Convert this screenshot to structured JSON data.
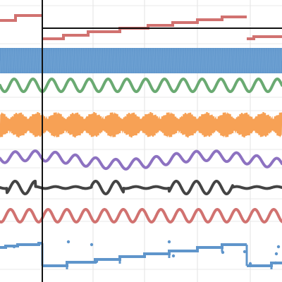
{
  "chart_data": {
    "type": "line",
    "title": "",
    "xlabel": "",
    "ylabel": "",
    "grid": true,
    "legend": "none",
    "x_range": [
      0,
      400
    ],
    "vertical_reference_line_x": 60,
    "series": [
      {
        "kind": "step",
        "color": "#d17270",
        "segments": [
          {
            "points": [
              [
                0,
                29
              ],
              [
                22,
                29
              ],
              [
                22,
                22
              ],
              [
                60,
                22
              ]
            ]
          },
          {
            "points": [
              [
                60,
                55
              ],
              [
                90,
                55
              ],
              [
                90,
                50
              ],
              [
                125,
                50
              ],
              [
                125,
                45
              ],
              [
                170,
                45
              ],
              [
                170,
                40
              ],
              [
                210,
                40
              ],
              [
                210,
                36
              ],
              [
                245,
                36
              ],
              [
                245,
                32
              ],
              [
                280,
                32
              ],
              [
                280,
                28
              ],
              [
                315,
                28
              ],
              [
                315,
                24
              ],
              [
                350,
                24
              ]
            ]
          },
          {
            "points": [
              [
                350,
                55
              ],
              [
                360,
                55
              ],
              [
                360,
                52
              ],
              [
                400,
                52
              ]
            ]
          }
        ]
      },
      {
        "kind": "dense-oscillation",
        "color": "#5f95cb",
        "center": 86,
        "amplitude": 18,
        "cycles": 160
      },
      {
        "kind": "sine",
        "color": "#6aaa72",
        "center": 121,
        "amplitude": 9,
        "cycles": 15,
        "phase": 0
      },
      {
        "kind": "modulated",
        "color": "#f7a155",
        "center": 177,
        "amplitude": 18,
        "carrier_cycles": 170,
        "envelope_cycles": 15
      },
      {
        "kind": "sine-drift",
        "color": "#8d72c1",
        "center": 227,
        "amplitude": 7,
        "cycles": 14,
        "drift_amplitude": 6,
        "drift_cycles": 1.6
      },
      {
        "kind": "damped-bursts",
        "color": "#444444",
        "center": 266,
        "amplitude": 9,
        "cycles": 14
      },
      {
        "kind": "sine",
        "color": "#d17270",
        "center": 306,
        "amplitude": 9,
        "cycles": 15,
        "phase": 1.2
      },
      {
        "kind": "noisy-step",
        "color": "#5f95cb",
        "segments": [
          {
            "points": [
              [
                0,
                351
              ],
              [
                8,
                351
              ],
              [
                8,
                349
              ],
              [
                25,
                349
              ],
              [
                25,
                347
              ],
              [
                55,
                347
              ],
              [
                55,
                345
              ],
              [
                60,
                345
              ]
            ]
          },
          {
            "points": [
              [
                60,
                377
              ],
              [
                95,
                377
              ],
              [
                95,
                372
              ],
              [
                135,
                372
              ],
              [
                135,
                368
              ],
              [
                170,
                368
              ],
              [
                170,
                364
              ],
              [
                205,
                364
              ],
              [
                205,
                360
              ],
              [
                240,
                360
              ],
              [
                240,
                356
              ],
              [
                280,
                356
              ],
              [
                280,
                351
              ],
              [
                315,
                351
              ],
              [
                315,
                347
              ],
              [
                350,
                347
              ]
            ]
          },
          {
            "points": [
              [
                350,
                377
              ],
              [
                385,
                377
              ],
              [
                385,
                373
              ],
              [
                400,
                373
              ]
            ]
          }
        ]
      }
    ]
  }
}
